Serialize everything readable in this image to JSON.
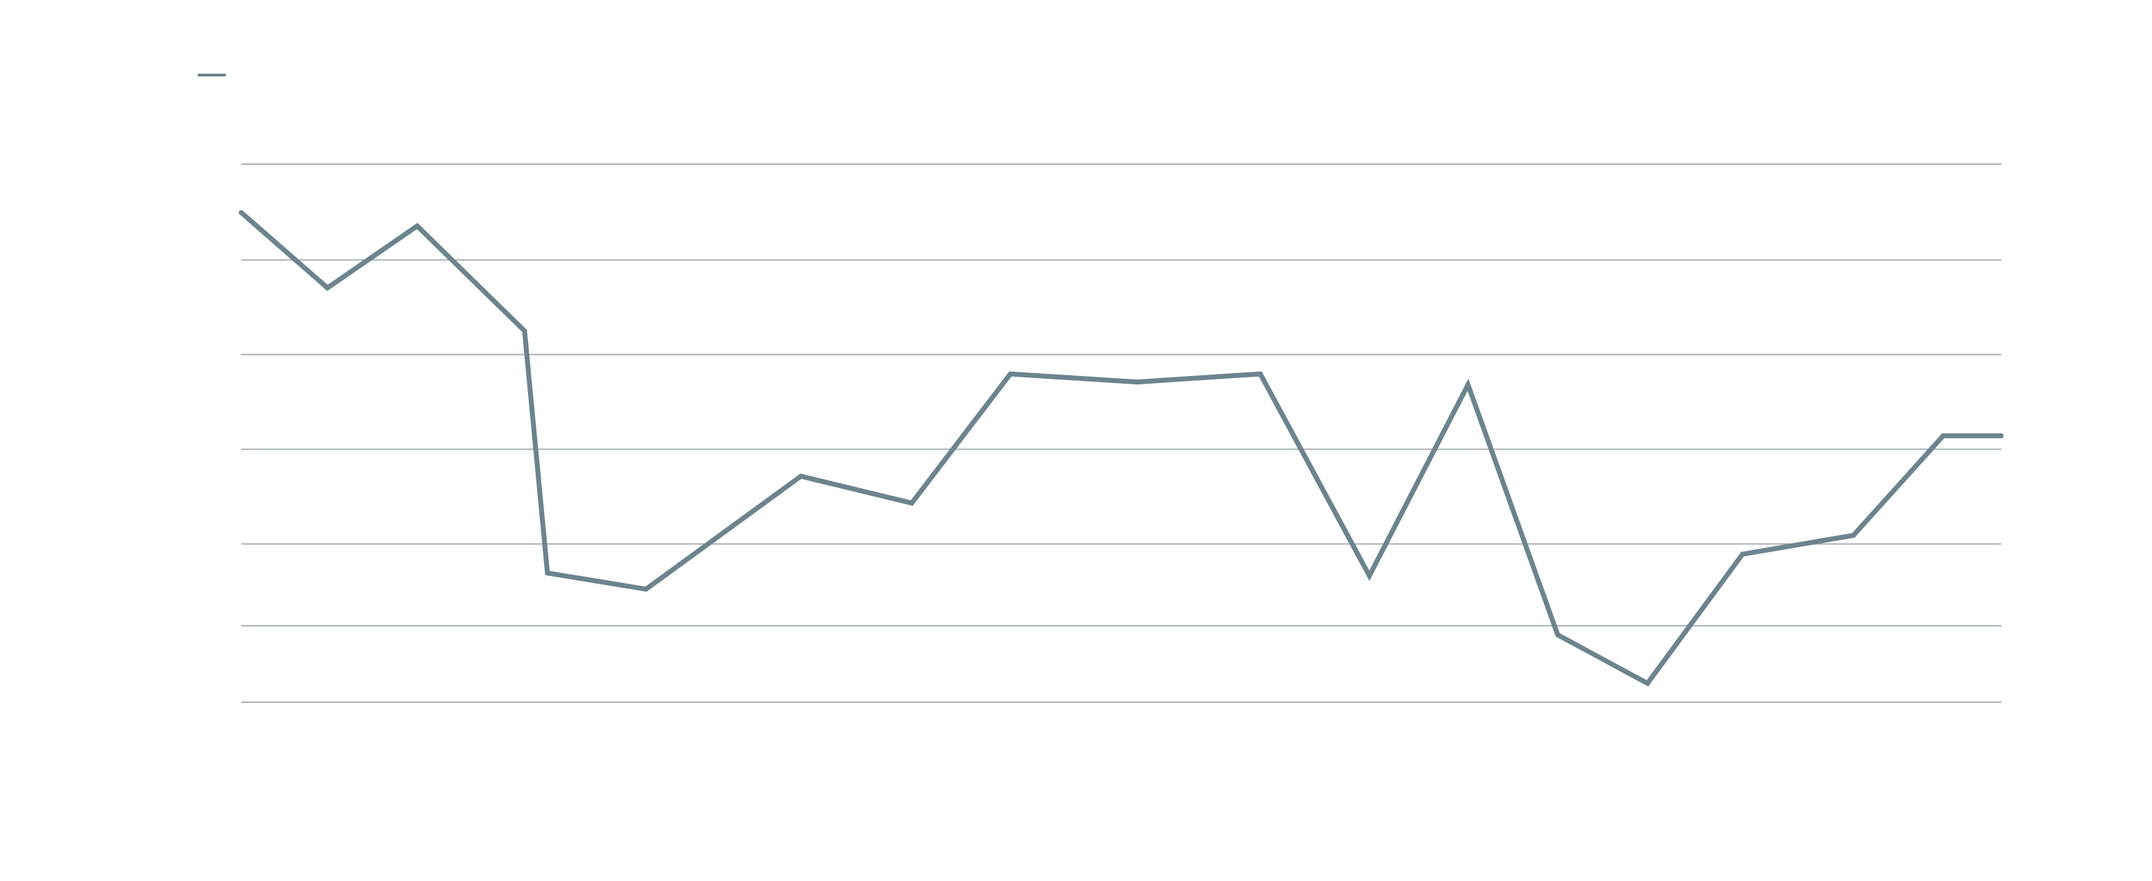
{
  "chart_data": {
    "type": "line",
    "title": "",
    "xlabel": "",
    "ylabel": "",
    "grid": true,
    "legend": "top-left",
    "x": [
      0.0,
      0.049,
      0.1,
      0.161,
      0.174,
      0.23,
      0.318,
      0.381,
      0.437,
      0.509,
      0.579,
      0.641,
      0.697,
      0.748,
      0.799,
      0.853,
      0.916,
      0.967,
      1.0
    ],
    "ylim": [
      0,
      100
    ],
    "series": [
      {
        "color": "#6b848d",
        "values": [
          91,
          77,
          88.5,
          69,
          24,
          21,
          42,
          37,
          61,
          59.5,
          61,
          23.5,
          59,
          12.5,
          3.5,
          27.5,
          31,
          49.5,
          49.5
        ]
      }
    ],
    "gridline_values": [
      0,
      14.2,
      29.4,
      47,
      64.6,
      82.2,
      100
    ],
    "colors": {
      "gridline": "#aab0b3",
      "line": "#6b848d"
    }
  }
}
